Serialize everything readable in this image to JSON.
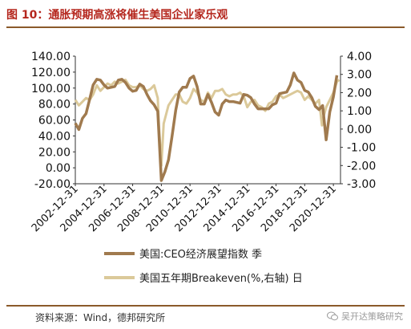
{
  "header": {
    "title": "图 10：通胀预期高涨将催生美国企业家乐观"
  },
  "footer": {
    "source": "资料来源：Wind，德邦研究所",
    "watermark": "吴开达策略研究"
  },
  "colors": {
    "ceo": "#a07a4e",
    "breakeven": "#dbc99a",
    "title": "#b5271e",
    "rule": "#8b5a2b"
  },
  "icons": {
    "watermark": "wechat-icon"
  },
  "chart_data": {
    "type": "line",
    "title": "",
    "x_ticks": [
      "2002-12-31",
      "2004-12-31",
      "2006-12-31",
      "2008-12-31",
      "2010-12-31",
      "2012-12-31",
      "2014-12-31",
      "2016-12-31",
      "2018-12-31",
      "2020-12-31"
    ],
    "y_left": {
      "ticks": [
        "140.00",
        "120.00",
        "100.00",
        "80.00",
        "60.00",
        "40.00",
        "20.00",
        "0.00",
        "-20.00"
      ],
      "range": [
        -20,
        140
      ]
    },
    "y_right": {
      "ticks": [
        "4.00",
        "3.00",
        "2.00",
        "1.00",
        "0.00",
        "-1.00",
        "-2.00",
        "-3.00"
      ],
      "range": [
        -3,
        4
      ]
    },
    "series": [
      {
        "name": "美国:CEO经济展望指数 季",
        "axis": "left",
        "points": [
          [
            "2002-12-31",
            56
          ],
          [
            "2003-03-31",
            48
          ],
          [
            "2003-06-30",
            62
          ],
          [
            "2003-09-30",
            68
          ],
          [
            "2003-12-31",
            86
          ],
          [
            "2004-03-31",
            104
          ],
          [
            "2004-06-30",
            111
          ],
          [
            "2004-09-30",
            110
          ],
          [
            "2004-12-31",
            104
          ],
          [
            "2005-03-31",
            100
          ],
          [
            "2005-06-30",
            101
          ],
          [
            "2005-09-30",
            102
          ],
          [
            "2005-12-31",
            110
          ],
          [
            "2006-03-31",
            111
          ],
          [
            "2006-06-30",
            107
          ],
          [
            "2006-09-30",
            100
          ],
          [
            "2006-12-31",
            96
          ],
          [
            "2007-03-31",
            97
          ],
          [
            "2007-06-30",
            105
          ],
          [
            "2007-09-30",
            102
          ],
          [
            "2007-12-31",
            92
          ],
          [
            "2008-03-31",
            84
          ],
          [
            "2008-06-30",
            79
          ],
          [
            "2008-09-30",
            71
          ],
          [
            "2008-12-31",
            -16
          ],
          [
            "2009-03-31",
            -5
          ],
          [
            "2009-06-30",
            10
          ],
          [
            "2009-09-30",
            40
          ],
          [
            "2009-12-31",
            72
          ],
          [
            "2010-03-31",
            95
          ],
          [
            "2010-06-30",
            101
          ],
          [
            "2010-09-30",
            101
          ],
          [
            "2010-12-31",
            112
          ],
          [
            "2011-03-31",
            115
          ],
          [
            "2011-06-30",
            102
          ],
          [
            "2011-09-30",
            80
          ],
          [
            "2011-12-31",
            80
          ],
          [
            "2012-03-31",
            92
          ],
          [
            "2012-06-30",
            82
          ],
          [
            "2012-09-30",
            70
          ],
          [
            "2012-12-31",
            66
          ],
          [
            "2013-03-31",
            80
          ],
          [
            "2013-06-30",
            85
          ],
          [
            "2013-09-30",
            83
          ],
          [
            "2013-12-31",
            83
          ],
          [
            "2014-03-31",
            82
          ],
          [
            "2014-06-30",
            81
          ],
          [
            "2014-09-30",
            92
          ],
          [
            "2014-12-31",
            91
          ],
          [
            "2015-03-31",
            88
          ],
          [
            "2015-06-30",
            80
          ],
          [
            "2015-09-30",
            74
          ],
          [
            "2015-12-31",
            74
          ],
          [
            "2016-03-31",
            74
          ],
          [
            "2016-06-30",
            74
          ],
          [
            "2016-09-30",
            79
          ],
          [
            "2016-12-31",
            81
          ],
          [
            "2017-03-31",
            93
          ],
          [
            "2017-06-30",
            94
          ],
          [
            "2017-09-30",
            95
          ],
          [
            "2017-12-31",
            104
          ],
          [
            "2018-03-31",
            119
          ],
          [
            "2018-06-30",
            110
          ],
          [
            "2018-09-30",
            107
          ],
          [
            "2018-12-31",
            97
          ],
          [
            "2019-03-31",
            95
          ],
          [
            "2019-06-30",
            88
          ],
          [
            "2019-09-30",
            77
          ],
          [
            "2019-12-31",
            73
          ],
          [
            "2020-03-31",
            78
          ],
          [
            "2020-06-30",
            35
          ],
          [
            "2020-09-30",
            70
          ],
          [
            "2020-12-31",
            89
          ],
          [
            "2021-03-31",
            116
          ]
        ]
      },
      {
        "name": "美国五年期Breakeven(%,右轴) 日",
        "axis": "right",
        "points": [
          [
            "2002-12-31",
            1.6
          ],
          [
            "2003-03-31",
            1.3
          ],
          [
            "2003-06-30",
            1.5
          ],
          [
            "2003-09-30",
            1.7
          ],
          [
            "2003-12-31",
            1.6
          ],
          [
            "2004-03-31",
            1.9
          ],
          [
            "2004-06-30",
            2.4
          ],
          [
            "2004-09-30",
            2.1
          ],
          [
            "2004-12-31",
            2.3
          ],
          [
            "2005-03-31",
            2.5
          ],
          [
            "2005-06-30",
            2.4
          ],
          [
            "2005-09-30",
            2.6
          ],
          [
            "2005-12-31",
            2.5
          ],
          [
            "2006-03-31",
            2.6
          ],
          [
            "2006-06-30",
            2.7
          ],
          [
            "2006-09-30",
            2.4
          ],
          [
            "2006-12-31",
            2.3
          ],
          [
            "2007-03-31",
            2.3
          ],
          [
            "2007-06-30",
            2.4
          ],
          [
            "2007-09-30",
            2.2
          ],
          [
            "2007-12-31",
            2.1
          ],
          [
            "2008-03-31",
            2.2
          ],
          [
            "2008-06-30",
            2.4
          ],
          [
            "2008-09-30",
            1.7
          ],
          [
            "2008-10-31",
            0.2
          ],
          [
            "2008-12-31",
            -2.0
          ],
          [
            "2009-02-28",
            0.3
          ],
          [
            "2009-06-30",
            1.3
          ],
          [
            "2009-09-30",
            1.6
          ],
          [
            "2009-12-31",
            1.9
          ],
          [
            "2010-03-31",
            1.9
          ],
          [
            "2010-06-30",
            1.5
          ],
          [
            "2010-09-30",
            1.4
          ],
          [
            "2010-12-31",
            1.7
          ],
          [
            "2011-03-31",
            2.2
          ],
          [
            "2011-06-30",
            2.0
          ],
          [
            "2011-09-30",
            1.6
          ],
          [
            "2011-12-31",
            1.5
          ],
          [
            "2012-03-31",
            2.0
          ],
          [
            "2012-06-30",
            1.7
          ],
          [
            "2012-09-30",
            2.1
          ],
          [
            "2012-12-31",
            2.1
          ],
          [
            "2013-03-31",
            2.2
          ],
          [
            "2013-06-30",
            1.9
          ],
          [
            "2013-09-30",
            1.8
          ],
          [
            "2013-12-31",
            1.9
          ],
          [
            "2014-03-31",
            1.9
          ],
          [
            "2014-06-30",
            2.0
          ],
          [
            "2014-09-30",
            1.8
          ],
          [
            "2014-12-31",
            1.2
          ],
          [
            "2015-03-31",
            1.5
          ],
          [
            "2015-06-30",
            1.6
          ],
          [
            "2015-09-30",
            1.3
          ],
          [
            "2015-12-31",
            1.2
          ],
          [
            "2016-03-31",
            1.0
          ],
          [
            "2016-06-30",
            1.4
          ],
          [
            "2016-09-30",
            1.5
          ],
          [
            "2016-12-31",
            1.8
          ],
          [
            "2017-03-31",
            1.9
          ],
          [
            "2017-06-30",
            1.7
          ],
          [
            "2017-09-30",
            1.8
          ],
          [
            "2017-12-31",
            1.9
          ],
          [
            "2018-03-31",
            2.0
          ],
          [
            "2018-06-30",
            2.1
          ],
          [
            "2018-09-30",
            2.0
          ],
          [
            "2018-12-31",
            1.6
          ],
          [
            "2019-03-31",
            1.8
          ],
          [
            "2019-06-30",
            1.6
          ],
          [
            "2019-09-30",
            1.4
          ],
          [
            "2019-12-31",
            1.6
          ],
          [
            "2020-03-16",
            0.2
          ],
          [
            "2020-03-31",
            0.5
          ],
          [
            "2020-06-30",
            1.2
          ],
          [
            "2020-09-30",
            1.6
          ],
          [
            "2020-12-31",
            2.0
          ],
          [
            "2021-03-31",
            2.6
          ],
          [
            "2021-05-31",
            2.7
          ]
        ]
      }
    ],
    "legend_position": "bottom",
    "grid": false
  }
}
